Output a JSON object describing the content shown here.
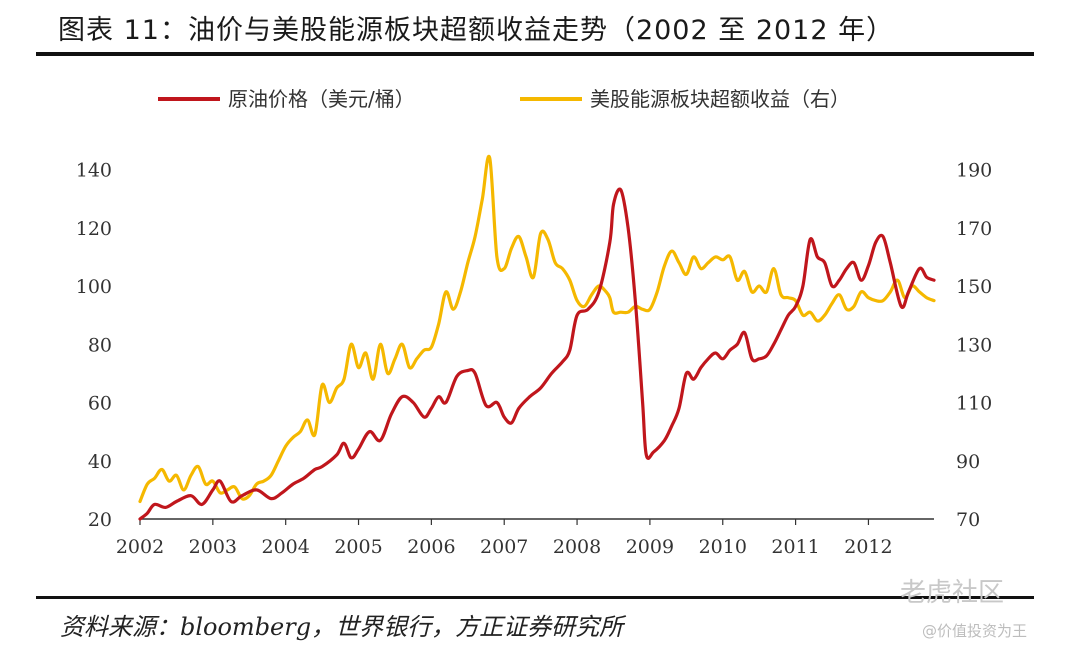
{
  "title": "图表 11：油价与美股能源板块超额收益走势（2002 至 2012 年）",
  "source": "资料来源：bloomberg，世界银行，方正证券研究所",
  "watermark": {
    "logo_text": "老虎社区",
    "user_text": "@价值投资为王"
  },
  "colors": {
    "oil": "#c0161c",
    "energy": "#f5b800",
    "axis": "#333333"
  },
  "chart_data": {
    "type": "line",
    "title": "油价与美股能源板块超额收益走势（2002 至 2012 年）",
    "xlabel": "",
    "ylabel_left": "原油价格（美元/桶）",
    "ylabel_right": "美股能源板块超额收益",
    "x_ticks": [
      "2002",
      "2003",
      "2004",
      "2005",
      "2006",
      "2007",
      "2008",
      "2009",
      "2010",
      "2011",
      "2012"
    ],
    "x_range": [
      2002.0,
      2012.9
    ],
    "y_left_ticks": [
      "20",
      "40",
      "60",
      "80",
      "100",
      "120",
      "140"
    ],
    "y_left_range": [
      20,
      145
    ],
    "y_right_ticks": [
      "70",
      "90",
      "110",
      "130",
      "150",
      "170",
      "190"
    ],
    "y_right_range": [
      70,
      195
    ],
    "legend_position": "top",
    "series": [
      {
        "name": "原油价格（美元/桶）",
        "axis": "left",
        "x": [
          2002.0,
          2002.1,
          2002.2,
          2002.35,
          2002.5,
          2002.7,
          2002.85,
          2003.0,
          2003.1,
          2003.25,
          2003.4,
          2003.6,
          2003.8,
          2003.95,
          2004.1,
          2004.25,
          2004.4,
          2004.5,
          2004.7,
          2004.8,
          2004.9,
          2005.0,
          2005.15,
          2005.3,
          2005.45,
          2005.6,
          2005.75,
          2005.9,
          2006.0,
          2006.1,
          2006.2,
          2006.35,
          2006.5,
          2006.6,
          2006.75,
          2006.9,
          2007.0,
          2007.1,
          2007.2,
          2007.35,
          2007.5,
          2007.65,
          2007.8,
          2007.9,
          2008.0,
          2008.15,
          2008.3,
          2008.45,
          2008.5,
          2008.6,
          2008.7,
          2008.8,
          2008.9,
          2008.95,
          2009.05,
          2009.2,
          2009.3,
          2009.4,
          2009.5,
          2009.6,
          2009.7,
          2009.8,
          2009.9,
          2010.0,
          2010.1,
          2010.2,
          2010.3,
          2010.4,
          2010.5,
          2010.6,
          2010.7,
          2010.8,
          2010.9,
          2011.0,
          2011.1,
          2011.2,
          2011.3,
          2011.4,
          2011.5,
          2011.6,
          2011.7,
          2011.8,
          2011.9,
          2012.0,
          2012.1,
          2012.2,
          2012.3,
          2012.45,
          2012.55,
          2012.7,
          2012.8,
          2012.9
        ],
        "values": [
          20,
          22,
          25,
          24,
          26,
          28,
          25,
          30,
          33,
          26,
          28,
          30,
          27,
          29,
          32,
          34,
          37,
          38,
          42,
          46,
          41,
          44,
          50,
          47,
          56,
          62,
          60,
          55,
          58,
          62,
          60,
          69,
          71,
          70,
          59,
          60,
          55,
          53,
          58,
          62,
          65,
          70,
          74,
          78,
          90,
          92,
          98,
          115,
          128,
          133,
          120,
          95,
          60,
          42,
          43,
          47,
          52,
          58,
          70,
          68,
          72,
          75,
          77,
          75,
          78,
          80,
          84,
          75,
          75,
          76,
          80,
          85,
          90,
          93,
          100,
          116,
          110,
          108,
          100,
          102,
          106,
          108,
          102,
          107,
          115,
          117,
          108,
          93,
          98,
          106,
          103,
          102
        ]
      },
      {
        "name": "美股能源板块超额收益（右）",
        "axis": "right",
        "x": [
          2002.0,
          2002.1,
          2002.2,
          2002.3,
          2002.4,
          2002.5,
          2002.6,
          2002.7,
          2002.8,
          2002.9,
          2003.0,
          2003.1,
          2003.2,
          2003.3,
          2003.4,
          2003.5,
          2003.6,
          2003.7,
          2003.8,
          2003.9,
          2004.0,
          2004.1,
          2004.2,
          2004.3,
          2004.4,
          2004.5,
          2004.6,
          2004.7,
          2004.8,
          2004.9,
          2005.0,
          2005.1,
          2005.2,
          2005.3,
          2005.4,
          2005.5,
          2005.6,
          2005.7,
          2005.8,
          2005.9,
          2006.0,
          2006.1,
          2006.2,
          2006.3,
          2006.4,
          2006.5,
          2006.6,
          2006.7,
          2006.8,
          2006.9,
          2007.0,
          2007.1,
          2007.2,
          2007.3,
          2007.4,
          2007.5,
          2007.6,
          2007.7,
          2007.8,
          2007.9,
          2008.0,
          2008.1,
          2008.2,
          2008.3,
          2008.4,
          2008.45,
          2008.5,
          2008.6,
          2008.7,
          2008.8,
          2008.9,
          2009.0,
          2009.1,
          2009.2,
          2009.3,
          2009.4,
          2009.5,
          2009.6,
          2009.7,
          2009.8,
          2009.9,
          2010.0,
          2010.1,
          2010.2,
          2010.3,
          2010.4,
          2010.5,
          2010.6,
          2010.7,
          2010.8,
          2010.9,
          2011.0,
          2011.1,
          2011.2,
          2011.3,
          2011.4,
          2011.5,
          2011.6,
          2011.7,
          2011.8,
          2011.9,
          2012.0,
          2012.1,
          2012.2,
          2012.3,
          2012.4,
          2012.5,
          2012.6,
          2012.7,
          2012.8,
          2012.9
        ],
        "values": [
          76,
          82,
          84,
          87,
          83,
          85,
          80,
          85,
          88,
          82,
          83,
          79,
          80,
          81,
          77,
          78,
          82,
          83,
          85,
          90,
          95,
          98,
          100,
          104,
          99,
          116,
          110,
          115,
          118,
          130,
          122,
          127,
          118,
          130,
          120,
          125,
          130,
          122,
          125,
          128,
          129,
          137,
          148,
          142,
          148,
          158,
          167,
          180,
          194,
          160,
          156,
          163,
          167,
          160,
          153,
          168,
          166,
          158,
          156,
          152,
          145,
          143,
          147,
          150,
          148,
          146,
          141,
          141,
          141,
          143,
          142,
          142,
          148,
          157,
          162,
          158,
          154,
          160,
          156,
          158,
          160,
          159,
          160,
          152,
          155,
          148,
          150,
          148,
          156,
          147,
          146,
          145,
          140,
          141,
          138,
          140,
          144,
          147,
          142,
          143,
          148,
          146,
          145,
          145,
          148,
          152,
          146,
          150,
          148,
          146,
          145
        ]
      }
    ]
  }
}
